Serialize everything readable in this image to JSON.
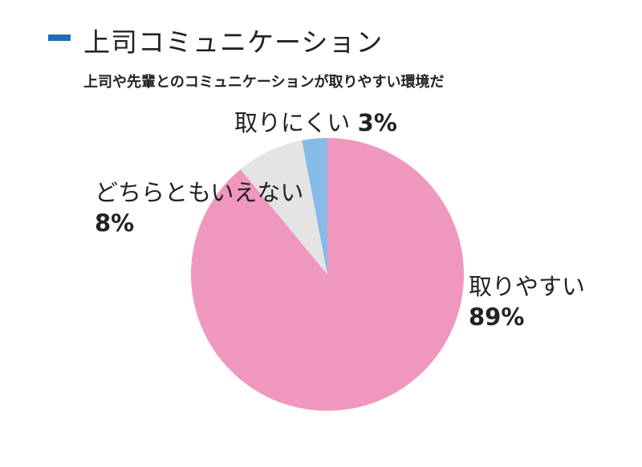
{
  "chart_data": {
    "type": "pie",
    "title": "上司コミュニケーション",
    "subtitle": "上司や先輩とのコミュニケーションが取りやすい環境だ",
    "title_marker_color": "#1f6db5",
    "start": "12 o'clock, clockwise",
    "slices": [
      {
        "label": "取りやすい",
        "value": 89,
        "value_label": "89%",
        "color": "#f097bf"
      },
      {
        "label": "どちらともいえない",
        "value": 8,
        "value_label": "8%",
        "color": "#e4e4e4"
      },
      {
        "label": "取りにくい",
        "value": 3,
        "value_label": "3%",
        "color": "#86bbe8"
      }
    ]
  }
}
